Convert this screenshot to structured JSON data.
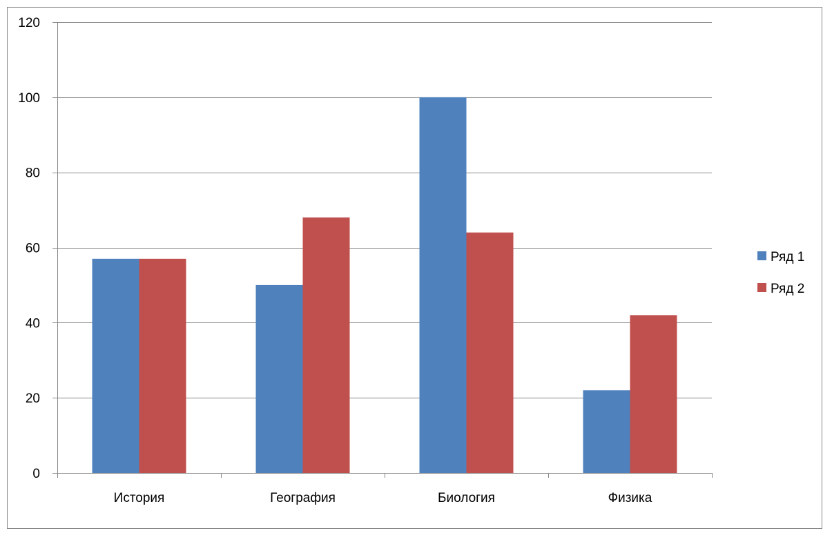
{
  "chart_data": {
    "type": "bar",
    "categories": [
      "История",
      "География",
      "Биология",
      "Физика"
    ],
    "series": [
      {
        "name": "Ряд 1",
        "values": [
          57,
          50,
          100,
          22
        ],
        "color": "#4F81BD"
      },
      {
        "name": "Ряд 2",
        "values": [
          57,
          68,
          64,
          42
        ],
        "color": "#C0504D"
      }
    ],
    "ylim": [
      0,
      120
    ],
    "yticks": [
      0,
      20,
      40,
      60,
      80,
      100,
      120
    ],
    "grid": true,
    "legend_position": "right"
  }
}
